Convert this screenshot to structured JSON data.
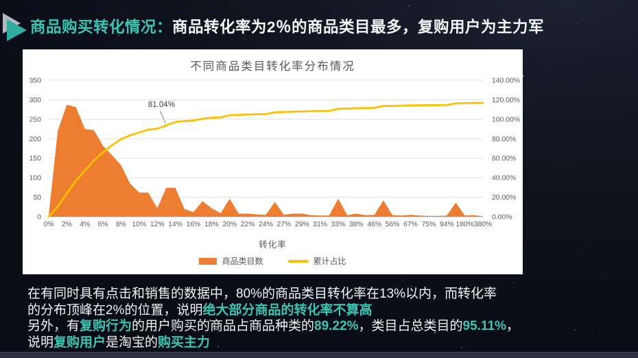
{
  "header": {
    "segments": [
      {
        "t": "商品购买转化情况：",
        "hl": true
      },
      {
        "t": "商品转化率为2％的商品类目最多，复购用户为主力军",
        "hl": false
      }
    ]
  },
  "chart_data": {
    "type": "area",
    "subtype": "pareto (area histogram + cumulative percent line)",
    "title": "不同商品类目转化率分布情况",
    "xlabel": "转化率",
    "categories": [
      "0%",
      "2%",
      "4%",
      "6%",
      "8%",
      "10%",
      "12%",
      "14%",
      "16%",
      "18%",
      "20%",
      "22%",
      "24%",
      "27%",
      "29%",
      "31%",
      "33%",
      "38%",
      "46%",
      "56%",
      "67%",
      "75%",
      "94%",
      "180%",
      "380%"
    ],
    "categories_note": "tick labels shown every other bin; values array includes the unlabeled intermediate bins",
    "values": [
      4,
      220,
      287,
      281,
      225,
      222,
      182,
      158,
      132,
      85,
      62,
      62,
      22,
      74,
      74,
      20,
      12,
      40,
      22,
      9,
      46,
      8,
      8,
      6,
      5,
      38,
      5,
      8,
      8,
      4,
      3,
      3,
      46,
      4,
      8,
      4,
      5,
      42,
      4,
      3,
      5,
      3,
      2,
      2,
      3,
      36,
      3,
      4,
      1
    ],
    "series": [
      {
        "name": "商品类目数",
        "type": "area",
        "color": "#ED7D31",
        "axis": "left"
      },
      {
        "name": "累计占比",
        "type": "line",
        "color": "#FFC000",
        "axis": "right"
      }
    ],
    "left_axis": {
      "min": 0,
      "max": 350,
      "step": 50
    },
    "right_axis": {
      "min": 0,
      "max": 120,
      "step": 20,
      "format": "0.00%"
    },
    "grid": "horizontal",
    "legend_position": "bottom",
    "annotation": {
      "text": "81.04%",
      "x_index": 13
    }
  },
  "body": {
    "lines": [
      [
        {
          "t": "在有同时具有点击和销售的数据中，80%的商品类目转化率在13%以内，而转化率",
          "hl": false
        }
      ],
      [
        {
          "t": "的分布顶峰在2%的位置，说明",
          "hl": false
        },
        {
          "t": "绝大部分商品的转化率不算高",
          "hl": true
        }
      ],
      [
        {
          "t": "另外，有",
          "hl": false
        },
        {
          "t": "复购行为",
          "hl": true
        },
        {
          "t": "的用户购买的商品占商品种类的",
          "hl": false
        },
        {
          "t": "89.22%",
          "hl": true
        },
        {
          "t": "，类目占总类目的",
          "hl": false
        },
        {
          "t": "95.11%",
          "hl": true
        },
        {
          "t": "，",
          "hl": false
        }
      ],
      [
        {
          "t": "说明",
          "hl": false
        },
        {
          "t": "复购用户",
          "hl": true
        },
        {
          "t": "是淘宝的",
          "hl": false
        },
        {
          "t": "购买主力",
          "hl": true
        }
      ]
    ]
  },
  "colors": {
    "accent": "#3CC4B4",
    "icon_teal": "#2FAE9F",
    "icon_gray": "#C6CBD4",
    "area": "#ED7D31",
    "line": "#FFC000",
    "background": "#0C101E",
    "panel": "#FFFFFF",
    "axis_text": "#595959"
  }
}
